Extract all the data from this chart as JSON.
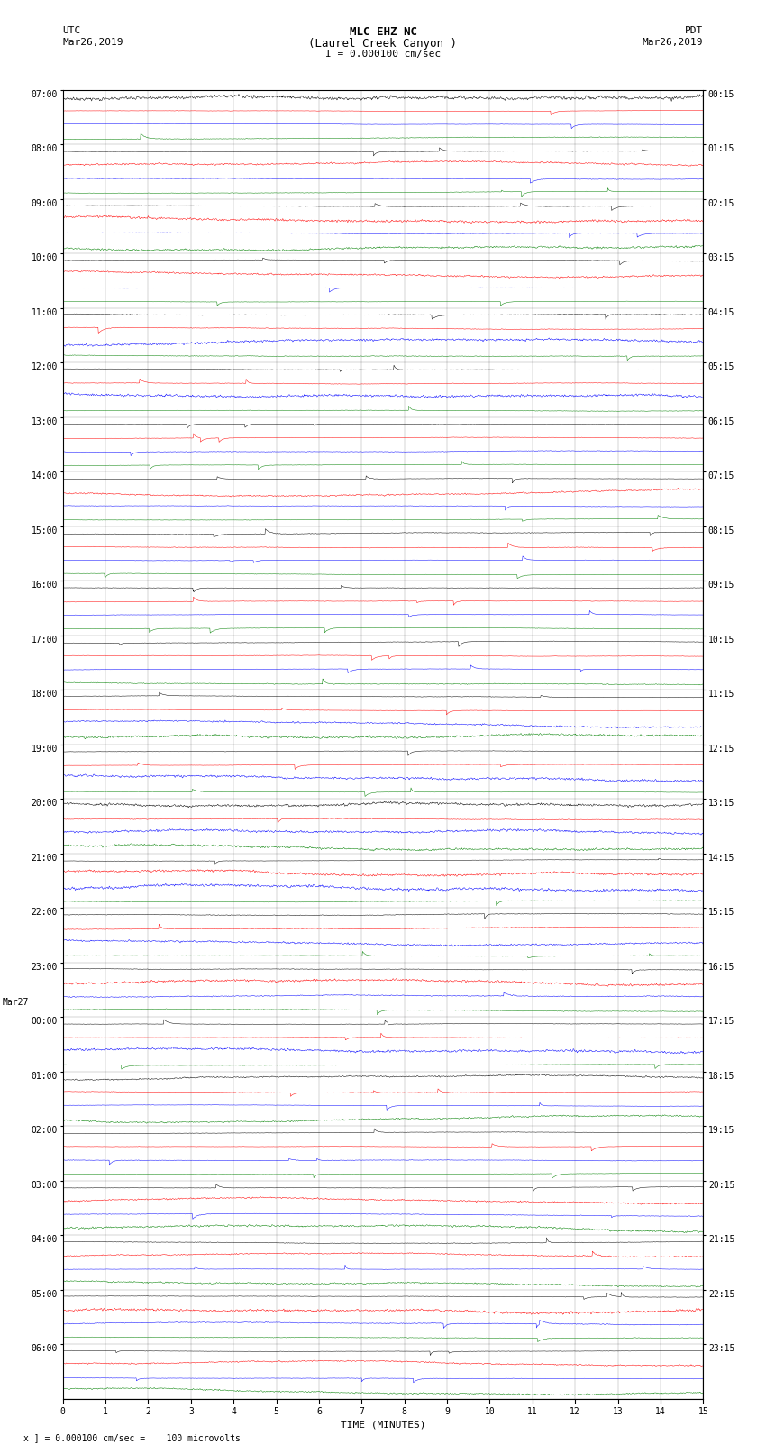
{
  "title_line1": "MLC EHZ NC",
  "title_line2": "(Laurel Creek Canyon )",
  "title_line3": "I = 0.000100 cm/sec",
  "left_header_line1": "UTC",
  "left_header_line2": "Mar26,2019",
  "right_header_line1": "PDT",
  "right_header_line2": "Mar26,2019",
  "xlabel": "TIME (MINUTES)",
  "footer": "x ] = 0.000100 cm/sec =    100 microvolts",
  "utc_hour_labels": [
    "07:00",
    "08:00",
    "09:00",
    "10:00",
    "11:00",
    "12:00",
    "13:00",
    "14:00",
    "15:00",
    "16:00",
    "17:00",
    "18:00",
    "19:00",
    "20:00",
    "21:00",
    "22:00",
    "23:00",
    "00:00",
    "01:00",
    "02:00",
    "03:00",
    "04:00",
    "05:00",
    "06:00"
  ],
  "pdt_hour_labels": [
    "00:15",
    "01:15",
    "02:15",
    "03:15",
    "04:15",
    "05:15",
    "06:15",
    "07:15",
    "08:15",
    "09:15",
    "10:15",
    "11:15",
    "12:15",
    "13:15",
    "14:15",
    "15:15",
    "16:15",
    "17:15",
    "18:15",
    "19:15",
    "20:15",
    "21:15",
    "22:15",
    "23:15"
  ],
  "mar27_index": 17,
  "trace_colors": [
    "black",
    "red",
    "blue",
    "green"
  ],
  "n_hours": 24,
  "n_traces_per_hour": 4,
  "n_rows": 96,
  "time_minutes": 15,
  "background_color": "white",
  "figsize": [
    8.5,
    16.13
  ],
  "dpi": 100
}
